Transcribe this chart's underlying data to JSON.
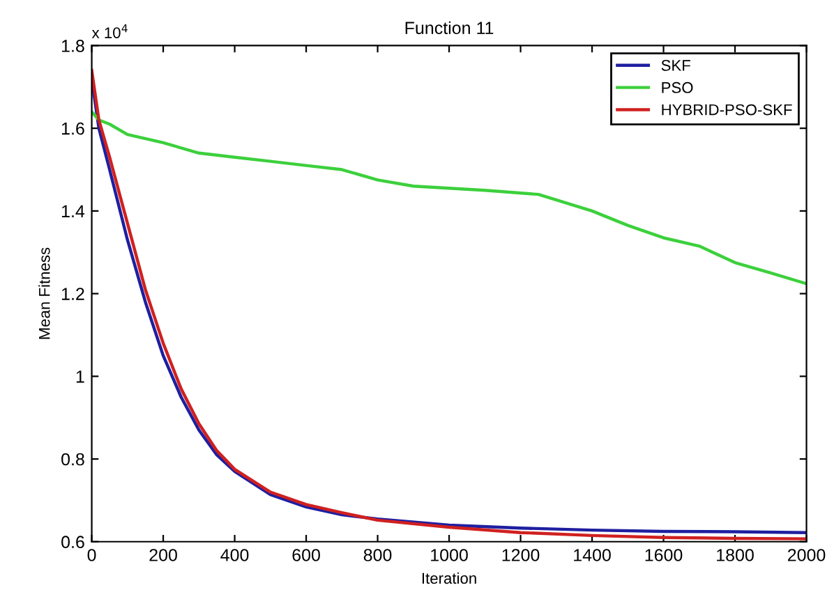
{
  "chart_data": {
    "type": "line",
    "title": "Function 11",
    "xlabel": "Iteration",
    "ylabel": "Mean Fitness",
    "annotations": [
      "x 10$^{4}$"
    ],
    "xlim": [
      0,
      2000
    ],
    "xticks": [
      0,
      200,
      400,
      600,
      800,
      1000,
      1200,
      1400,
      1600,
      1800,
      2000
    ],
    "ylim": [
      0.6,
      1.8
    ],
    "yticks": [
      0.6,
      0.8,
      1,
      1.2,
      1.4,
      1.6,
      1.8
    ],
    "grid": false,
    "legend": "top right",
    "series": [
      {
        "name": "SKF",
        "color": "#1f1fa0",
        "x": [
          0,
          20,
          50,
          100,
          150,
          200,
          250,
          300,
          350,
          400,
          500,
          600,
          700,
          800,
          1000,
          1200,
          1400,
          1600,
          1800,
          2000
        ],
        "values": [
          1.72,
          1.6,
          1.5,
          1.33,
          1.18,
          1.05,
          0.95,
          0.87,
          0.81,
          0.77,
          0.714,
          0.684,
          0.665,
          0.655,
          0.64,
          0.633,
          0.628,
          0.625,
          0.624,
          0.622
        ]
      },
      {
        "name": "PSO",
        "color": "#3cd03c",
        "x": [
          0,
          20,
          50,
          100,
          200,
          300,
          400,
          500,
          600,
          700,
          800,
          900,
          1000,
          1100,
          1250,
          1400,
          1500,
          1600,
          1700,
          1800,
          1900,
          2000
        ],
        "values": [
          1.64,
          1.62,
          1.61,
          1.585,
          1.565,
          1.54,
          1.53,
          1.52,
          1.51,
          1.5,
          1.475,
          1.46,
          1.455,
          1.45,
          1.44,
          1.4,
          1.365,
          1.335,
          1.315,
          1.275,
          1.25,
          1.224
        ]
      },
      {
        "name": "HYBRID-PSO-SKF",
        "color": "#d02020",
        "x": [
          0,
          20,
          50,
          100,
          150,
          200,
          250,
          300,
          350,
          400,
          500,
          600,
          700,
          800,
          1000,
          1200,
          1400,
          1600,
          1800,
          2000
        ],
        "values": [
          1.74,
          1.62,
          1.53,
          1.37,
          1.21,
          1.08,
          0.97,
          0.885,
          0.82,
          0.775,
          0.72,
          0.69,
          0.67,
          0.652,
          0.635,
          0.622,
          0.615,
          0.61,
          0.608,
          0.607
        ]
      }
    ]
  }
}
